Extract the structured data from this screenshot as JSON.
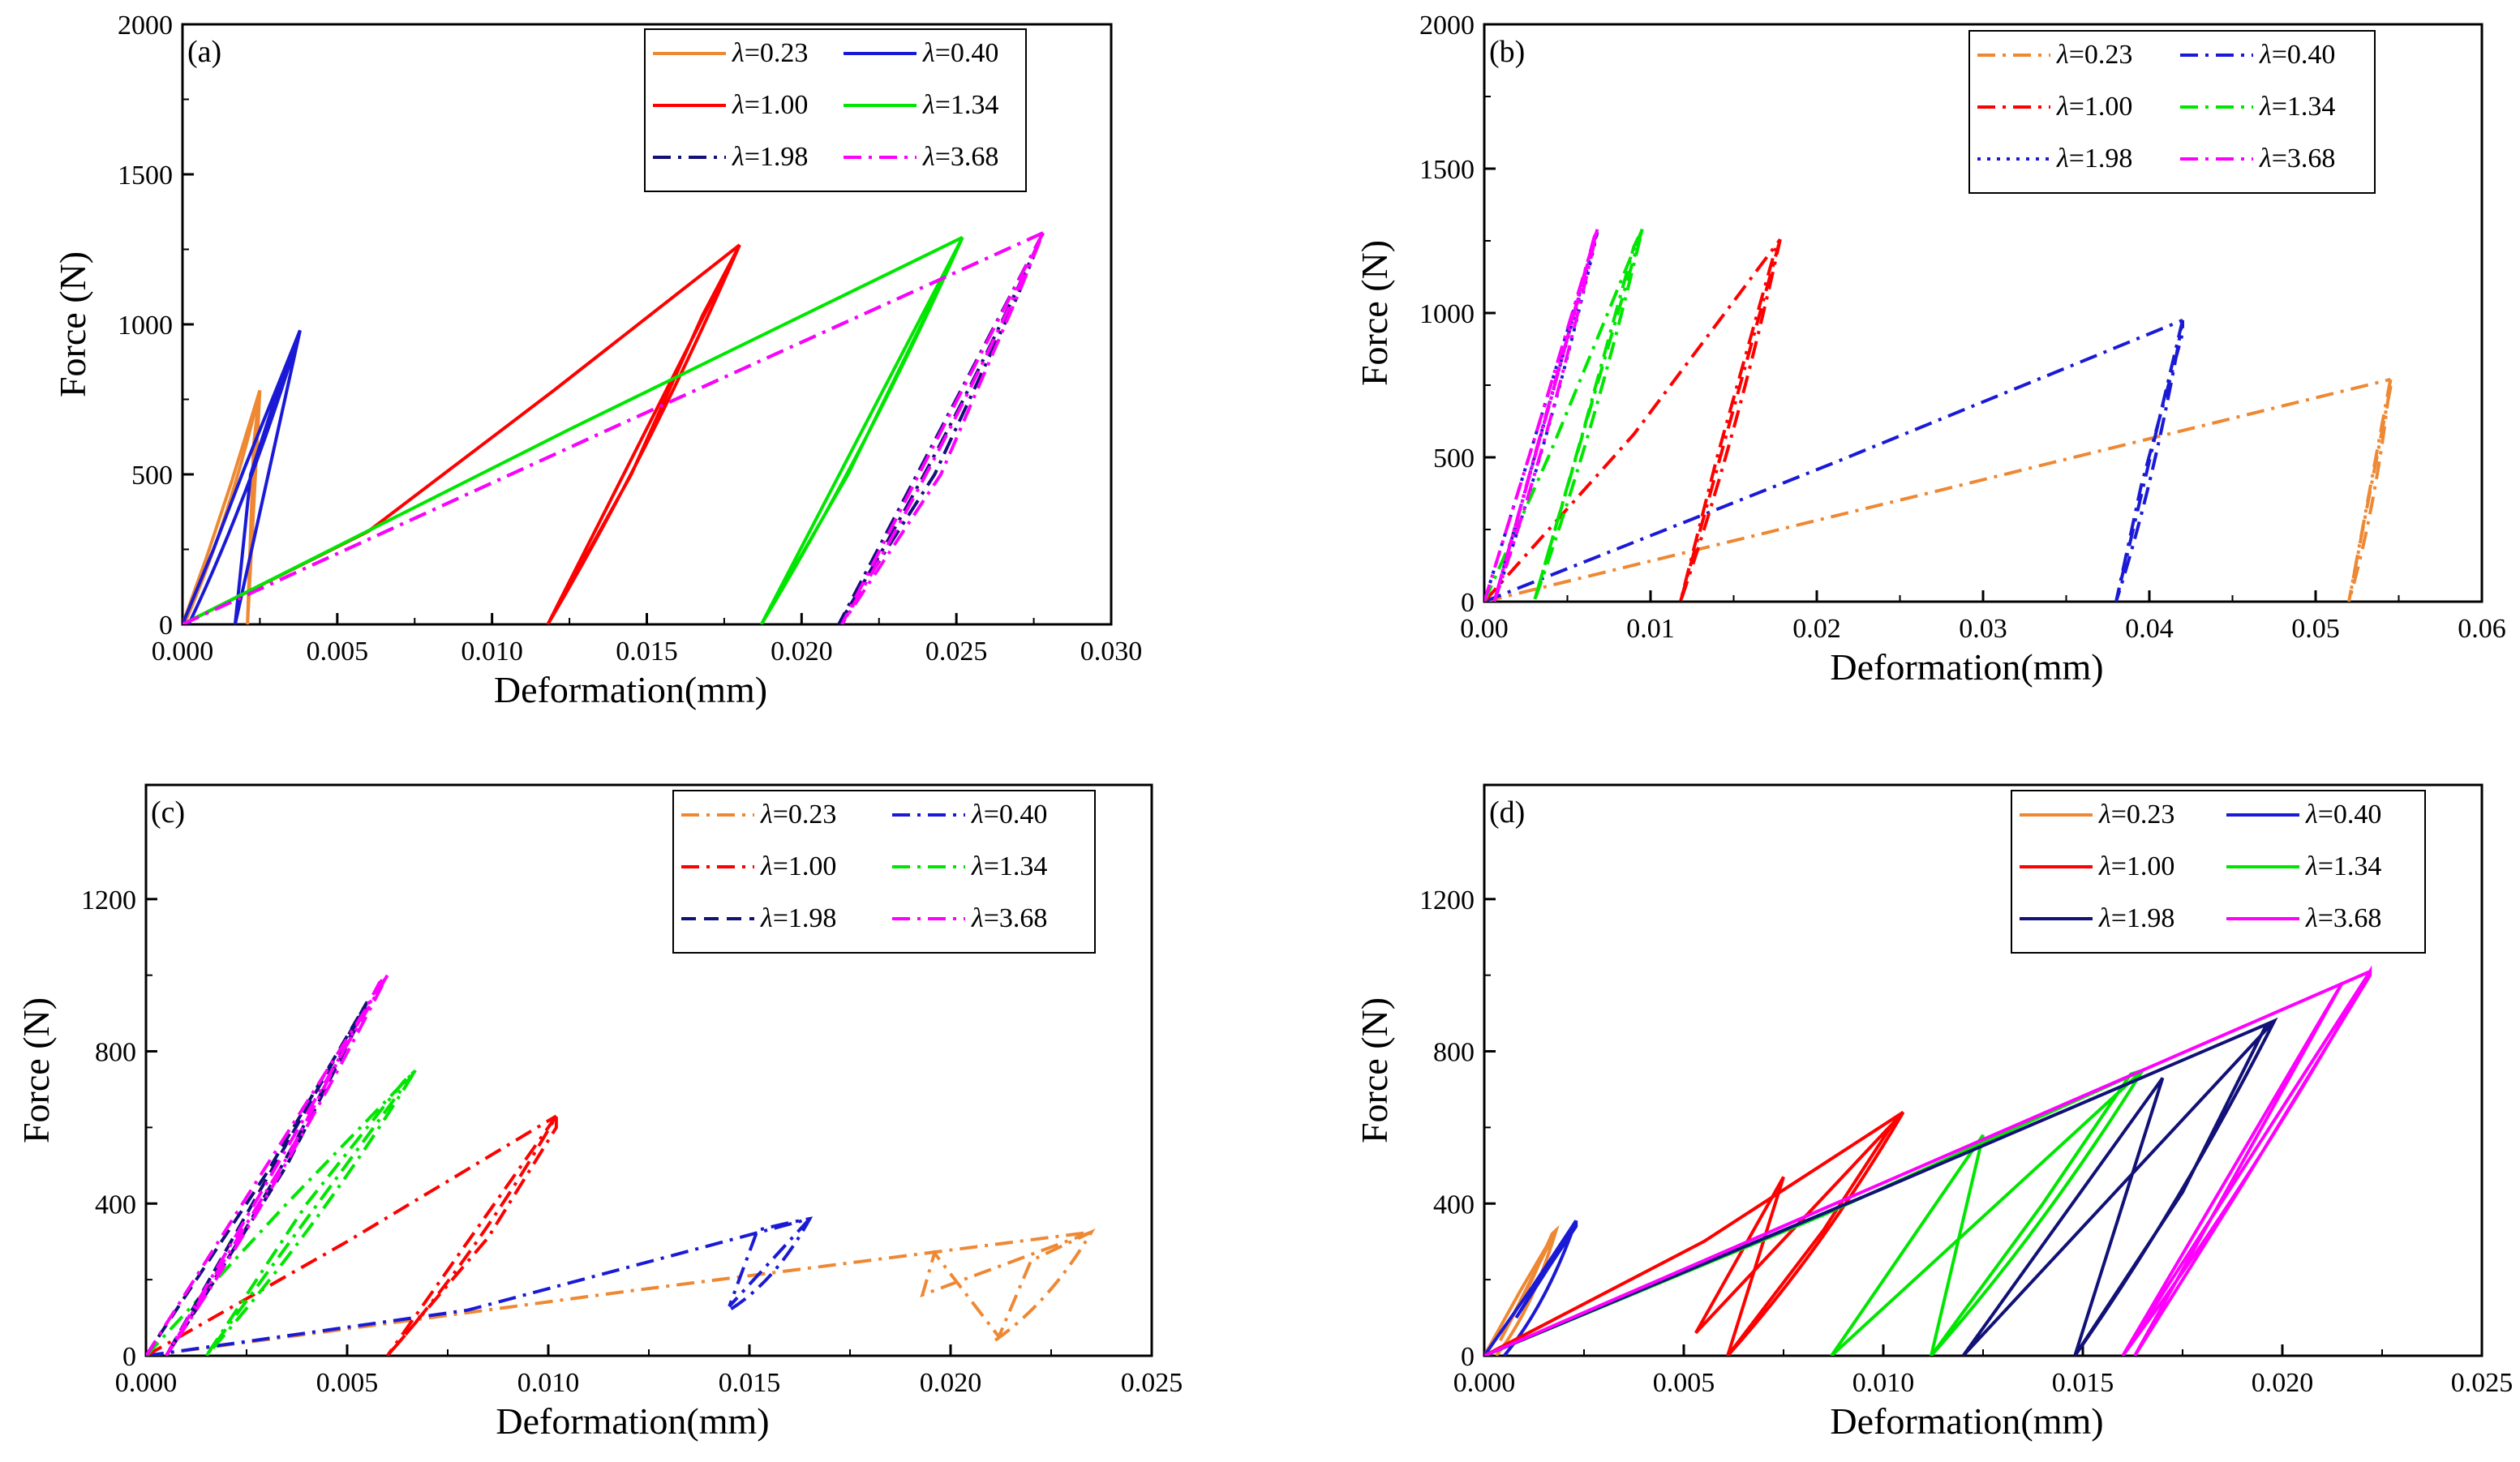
{
  "figure": {
    "panels": [
      "(a)",
      "(b)",
      "(c)",
      "(d)"
    ]
  },
  "chart_data": [
    {
      "type": "line",
      "panel_label": "(a)",
      "xlabel": "Deformation(mm)",
      "ylabel": "Force (N)",
      "xlim": [
        0,
        0.03
      ],
      "ylim": [
        0,
        2000
      ],
      "xticks": [
        "0.000",
        "0.005",
        "0.010",
        "0.015",
        "0.020",
        "0.025",
        "0.030"
      ],
      "yticks": [
        "0",
        "500",
        "1000",
        "1500",
        "2000"
      ],
      "legend": "top-right",
      "grid": false,
      "series": [
        {
          "name": "λ=0.23",
          "color": "#ee8833",
          "dash": "solid",
          "load": [
            [
              0,
              0
            ],
            [
              0.0008,
              230
            ],
            [
              0.0016,
              480
            ],
            [
              0.0025,
              780
            ]
          ],
          "loops": [
            [
              0.0021,
              0
            ],
            [
              0.0023,
              600
            ]
          ],
          "unload_end": [
            5e-05,
            0
          ]
        },
        {
          "name": "λ=0.40",
          "color": "#1a1ad6",
          "dash": "solid",
          "load": [
            [
              0,
              0
            ],
            [
              0.001,
              250
            ],
            [
              0.002,
              520
            ],
            [
              0.0038,
              980
            ]
          ],
          "loops": [
            [
              0.0017,
              0
            ],
            [
              0.0022,
              500
            ],
            [
              0.0033,
              850
            ]
          ],
          "unload_end": [
            0.0002,
            0
          ]
        },
        {
          "name": "λ=1.00",
          "color": "#ff0000",
          "dash": "solid",
          "load": [
            [
              0,
              0
            ],
            [
              0.006,
              310
            ],
            [
              0.012,
              780
            ],
            [
              0.018,
              1265
            ]
          ],
          "loops": [
            [
              0.0118,
              0
            ],
            [
              0.0145,
              500
            ],
            [
              0.0168,
              1030
            ]
          ],
          "unload_end": [
            0.0118,
            0
          ]
        },
        {
          "name": "λ=1.34",
          "color": "#00e600",
          "dash": "solid",
          "load": [
            [
              0,
              0
            ],
            [
              0.0125,
              650
            ],
            [
              0.0252,
              1290
            ]
          ],
          "loops": [
            [
              0.0187,
              0
            ],
            [
              0.0215,
              500
            ],
            [
              0.0242,
              1070
            ]
          ],
          "unload_end": [
            0.0187,
            0
          ]
        },
        {
          "name": "λ=1.98",
          "color": "#111177",
          "dash": "dashdot",
          "load": [
            [
              0,
              0
            ],
            [
              0.014,
              660
            ],
            [
              0.0278,
              1305
            ]
          ],
          "loops": [
            [
              0.0212,
              0
            ],
            [
              0.0243,
              500
            ],
            [
              0.027,
              1100
            ]
          ],
          "unload_end": [
            0.0212,
            0
          ]
        },
        {
          "name": "λ=3.68",
          "color": "#ff00ff",
          "dash": "dashdot",
          "load": [
            [
              0,
              0
            ],
            [
              0.014,
              660
            ],
            [
              0.0278,
              1305
            ]
          ],
          "loops": [
            [
              0.0213,
              0
            ],
            [
              0.0245,
              500
            ],
            [
              0.027,
              1100
            ]
          ],
          "unload_end": [
            0.0213,
            0
          ]
        }
      ]
    },
    {
      "type": "line",
      "panel_label": "(b)",
      "xlabel": "Deformation(mm)",
      "ylabel": "Force (N)",
      "xlim": [
        0,
        0.06
      ],
      "ylim": [
        0,
        2000
      ],
      "xticks": [
        "0.00",
        "0.01",
        "0.02",
        "0.03",
        "0.04",
        "0.05",
        "0.06"
      ],
      "yticks": [
        "0",
        "500",
        "1000",
        "1500",
        "2000"
      ],
      "legend": "top-right",
      "grid": false,
      "series": [
        {
          "name": "λ=0.23",
          "color": "#ee8833",
          "dash": "dashdot",
          "load": [
            [
              0,
              0
            ],
            [
              0.027,
              380
            ],
            [
              0.0545,
              770
            ]
          ],
          "loops": [
            [
              0.052,
              0
            ],
            [
              0.053,
              300
            ],
            [
              0.0545,
              740
            ]
          ],
          "unload_end": [
            0.052,
            0
          ]
        },
        {
          "name": "λ=0.40",
          "color": "#1a1ad6",
          "dash": "dashdot",
          "load": [
            [
              0,
              0
            ],
            [
              0.021,
              480
            ],
            [
              0.042,
              975
            ]
          ],
          "loops": [
            [
              0.038,
              0
            ],
            [
              0.0395,
              400
            ],
            [
              0.042,
              930
            ]
          ],
          "unload_end": [
            0.038,
            0
          ]
        },
        {
          "name": "λ=1.00",
          "color": "#ff0000",
          "dash": "dashdot",
          "load": [
            [
              0,
              0
            ],
            [
              0.009,
              580
            ],
            [
              0.0178,
              1255
            ]
          ],
          "loops": [
            [
              0.0118,
              0
            ],
            [
              0.014,
              500
            ],
            [
              0.0175,
              1220
            ]
          ],
          "unload_end": [
            0.0118,
            0
          ]
        },
        {
          "name": "λ=1.34",
          "color": "#00e600",
          "dash": "dashdot",
          "load": [
            [
              0,
              0
            ],
            [
              0.004,
              520
            ],
            [
              0.0095,
              1290
            ]
          ],
          "loops": [
            [
              0.003,
              0
            ],
            [
              0.006,
              600
            ],
            [
              0.009,
              1230
            ]
          ],
          "unload_end": [
            0.003,
            0
          ]
        },
        {
          "name": "λ=1.98",
          "color": "#1a1ad6",
          "dash": "dotted",
          "load": [
            [
              0,
              0
            ],
            [
              0.003,
              560
            ],
            [
              0.0068,
              1280
            ]
          ],
          "loops": [
            [
              0.0006,
              0
            ],
            [
              0.004,
              700
            ],
            [
              0.0066,
              1250
            ]
          ],
          "unload_end": [
            0.0006,
            0
          ]
        },
        {
          "name": "λ=3.68",
          "color": "#ff00ff",
          "dash": "dashdot",
          "load": [
            [
              0,
              0
            ],
            [
              0.003,
              560
            ],
            [
              0.0068,
              1290
            ]
          ],
          "loops": [
            [
              0.0006,
              0
            ],
            [
              0.004,
              700
            ],
            [
              0.0066,
              1260
            ]
          ],
          "unload_end": [
            0.0006,
            0
          ]
        }
      ]
    },
    {
      "type": "line",
      "panel_label": "(c)",
      "xlabel": "Deformation(mm)",
      "ylabel": "Force (N)",
      "xlim": [
        0,
        0.025
      ],
      "ylim": [
        0,
        1500
      ],
      "xticks": [
        "0.000",
        "0.005",
        "0.010",
        "0.015",
        "0.020",
        "0.025"
      ],
      "yticks": [
        "0",
        "400",
        "800",
        "1200"
      ],
      "legend": "top-right",
      "grid": false,
      "series": [
        {
          "name": "λ=0.23",
          "color": "#ee8833",
          "dash": "dashdot",
          "load": [
            [
              0,
              0
            ],
            [
              0.012,
              170
            ],
            [
              0.0235,
              325
            ]
          ],
          "loops": [
            [
              0.0193,
              160
            ],
            [
              0.0196,
              270
            ],
            [
              0.0212,
              50
            ],
            [
              0.022,
              250
            ]
          ],
          "unload_end": [
            0.0211,
            40
          ]
        },
        {
          "name": "λ=0.40",
          "color": "#1a1ad6",
          "dash": "dashdot",
          "load": [
            [
              0,
              0
            ],
            [
              0.008,
              120
            ],
            [
              0.0165,
              360
            ]
          ],
          "loops": [
            [
              0.0145,
              130
            ],
            [
              0.0152,
              330
            ],
            [
              0.016,
              350
            ]
          ],
          "unload_end": [
            0.0145,
            120
          ]
        },
        {
          "name": "λ=1.00",
          "color": "#ff0000",
          "dash": "dashdot",
          "load": [
            [
              0,
              0
            ],
            [
              0.005,
              300
            ],
            [
              0.0102,
              630
            ]
          ],
          "loops": [
            [
              0.006,
              0
            ],
            [
              0.0085,
              310
            ],
            [
              0.0102,
              600
            ]
          ],
          "unload_end": [
            0.006,
            0
          ]
        },
        {
          "name": "λ=1.34",
          "color": "#00e600",
          "dash": "dashdot",
          "load": [
            [
              0,
              0
            ],
            [
              0.0035,
              400
            ],
            [
              0.0067,
              750
            ]
          ],
          "loops": [
            [
              0.0015,
              0
            ],
            [
              0.004,
              400
            ],
            [
              0.0064,
              720
            ]
          ],
          "unload_end": [
            0.0015,
            0
          ]
        },
        {
          "name": "λ=1.98",
          "color": "#111177",
          "dash": "dashed",
          "load": [
            [
              0,
              0
            ],
            [
              0.003,
              480
            ],
            [
              0.0055,
              930
            ]
          ],
          "loops": [
            [
              0.0005,
              0
            ],
            [
              0.0035,
              500
            ],
            [
              0.0054,
              900
            ]
          ],
          "unload_end": [
            0.0005,
            0
          ]
        },
        {
          "name": "λ=3.68",
          "color": "#ff00ff",
          "dash": "dashdot",
          "load": [
            [
              0,
              0
            ],
            [
              0.003,
              500
            ],
            [
              0.006,
              1000
            ]
          ],
          "loops": [
            [
              0.0005,
              0
            ],
            [
              0.0035,
              520
            ],
            [
              0.0058,
              980
            ]
          ],
          "unload_end": [
            0.0005,
            0
          ]
        }
      ]
    },
    {
      "type": "line",
      "panel_label": "(d)",
      "xlabel": "Deformation(mm)",
      "ylabel": "Force (N)",
      "xlim": [
        0,
        0.025
      ],
      "ylim": [
        0,
        1500
      ],
      "xticks": [
        "0.000",
        "0.005",
        "0.010",
        "0.015",
        "0.020",
        "0.025"
      ],
      "yticks": [
        "0",
        "400",
        "800",
        "1200"
      ],
      "legend": "top-right",
      "grid": false,
      "series": [
        {
          "name": "λ=0.23",
          "color": "#ee8833",
          "dash": "solid",
          "load": [
            [
              0,
              0
            ],
            [
              0.0009,
              170
            ],
            [
              0.0018,
              330
            ]
          ],
          "loops": [
            [
              0.0004,
              40
            ],
            [
              0.0012,
              200
            ],
            [
              0.0017,
              320
            ]
          ],
          "unload_end": [
            0.0003,
            0
          ]
        },
        {
          "name": "λ=0.40",
          "color": "#1a1ad6",
          "dash": "solid",
          "load": [
            [
              0,
              0
            ],
            [
              0.0012,
              180
            ],
            [
              0.0023,
              355
            ]
          ],
          "loops": [
            [
              0.0008,
              100
            ],
            [
              0.0016,
              230
            ],
            [
              0.0023,
              340
            ]
          ],
          "unload_end": [
            0.0005,
            0
          ]
        },
        {
          "name": "λ=1.00",
          "color": "#ff0000",
          "dash": "solid",
          "load": [
            [
              0,
              0
            ],
            [
              0.0055,
              300
            ],
            [
              0.0105,
              640
            ]
          ],
          "loops": [
            [
              0.0053,
              60
            ],
            [
              0.0075,
              470
            ],
            [
              0.0061,
              0
            ],
            [
              0.0085,
              330
            ],
            [
              0.0103,
              620
            ]
          ],
          "unload_end": [
            0.0061,
            0
          ]
        },
        {
          "name": "λ=1.34",
          "color": "#00e600",
          "dash": "solid",
          "load": [
            [
              0,
              0
            ],
            [
              0.0085,
              370
            ],
            [
              0.0165,
              750
            ]
          ],
          "loops": [
            [
              0.0087,
              0
            ],
            [
              0.0125,
              580
            ],
            [
              0.0112,
              0
            ],
            [
              0.014,
              400
            ],
            [
              0.0162,
              740
            ]
          ],
          "unload_end": [
            0.0112,
            0
          ]
        },
        {
          "name": "λ=1.98",
          "color": "#111177",
          "dash": "solid",
          "load": [
            [
              0,
              0
            ],
            [
              0.01,
              440
            ],
            [
              0.0198,
              880
            ]
          ],
          "loops": [
            [
              0.012,
              0
            ],
            [
              0.017,
              730
            ],
            [
              0.0148,
              0
            ],
            [
              0.0175,
              430
            ],
            [
              0.0196,
              870
            ]
          ],
          "unload_end": [
            0.0148,
            0
          ]
        },
        {
          "name": "λ=3.68",
          "color": "#ff00ff",
          "dash": "solid",
          "load": [
            [
              0,
              0
            ],
            [
              0.011,
              500
            ],
            [
              0.0222,
              1010
            ]
          ],
          "loops": [
            [
              0.016,
              0
            ],
            [
              0.0215,
              980
            ],
            [
              0.0163,
              0
            ],
            [
              0.019,
              450
            ],
            [
              0.0222,
              1000
            ]
          ],
          "unload_end": [
            0.016,
            0
          ]
        }
      ]
    }
  ]
}
